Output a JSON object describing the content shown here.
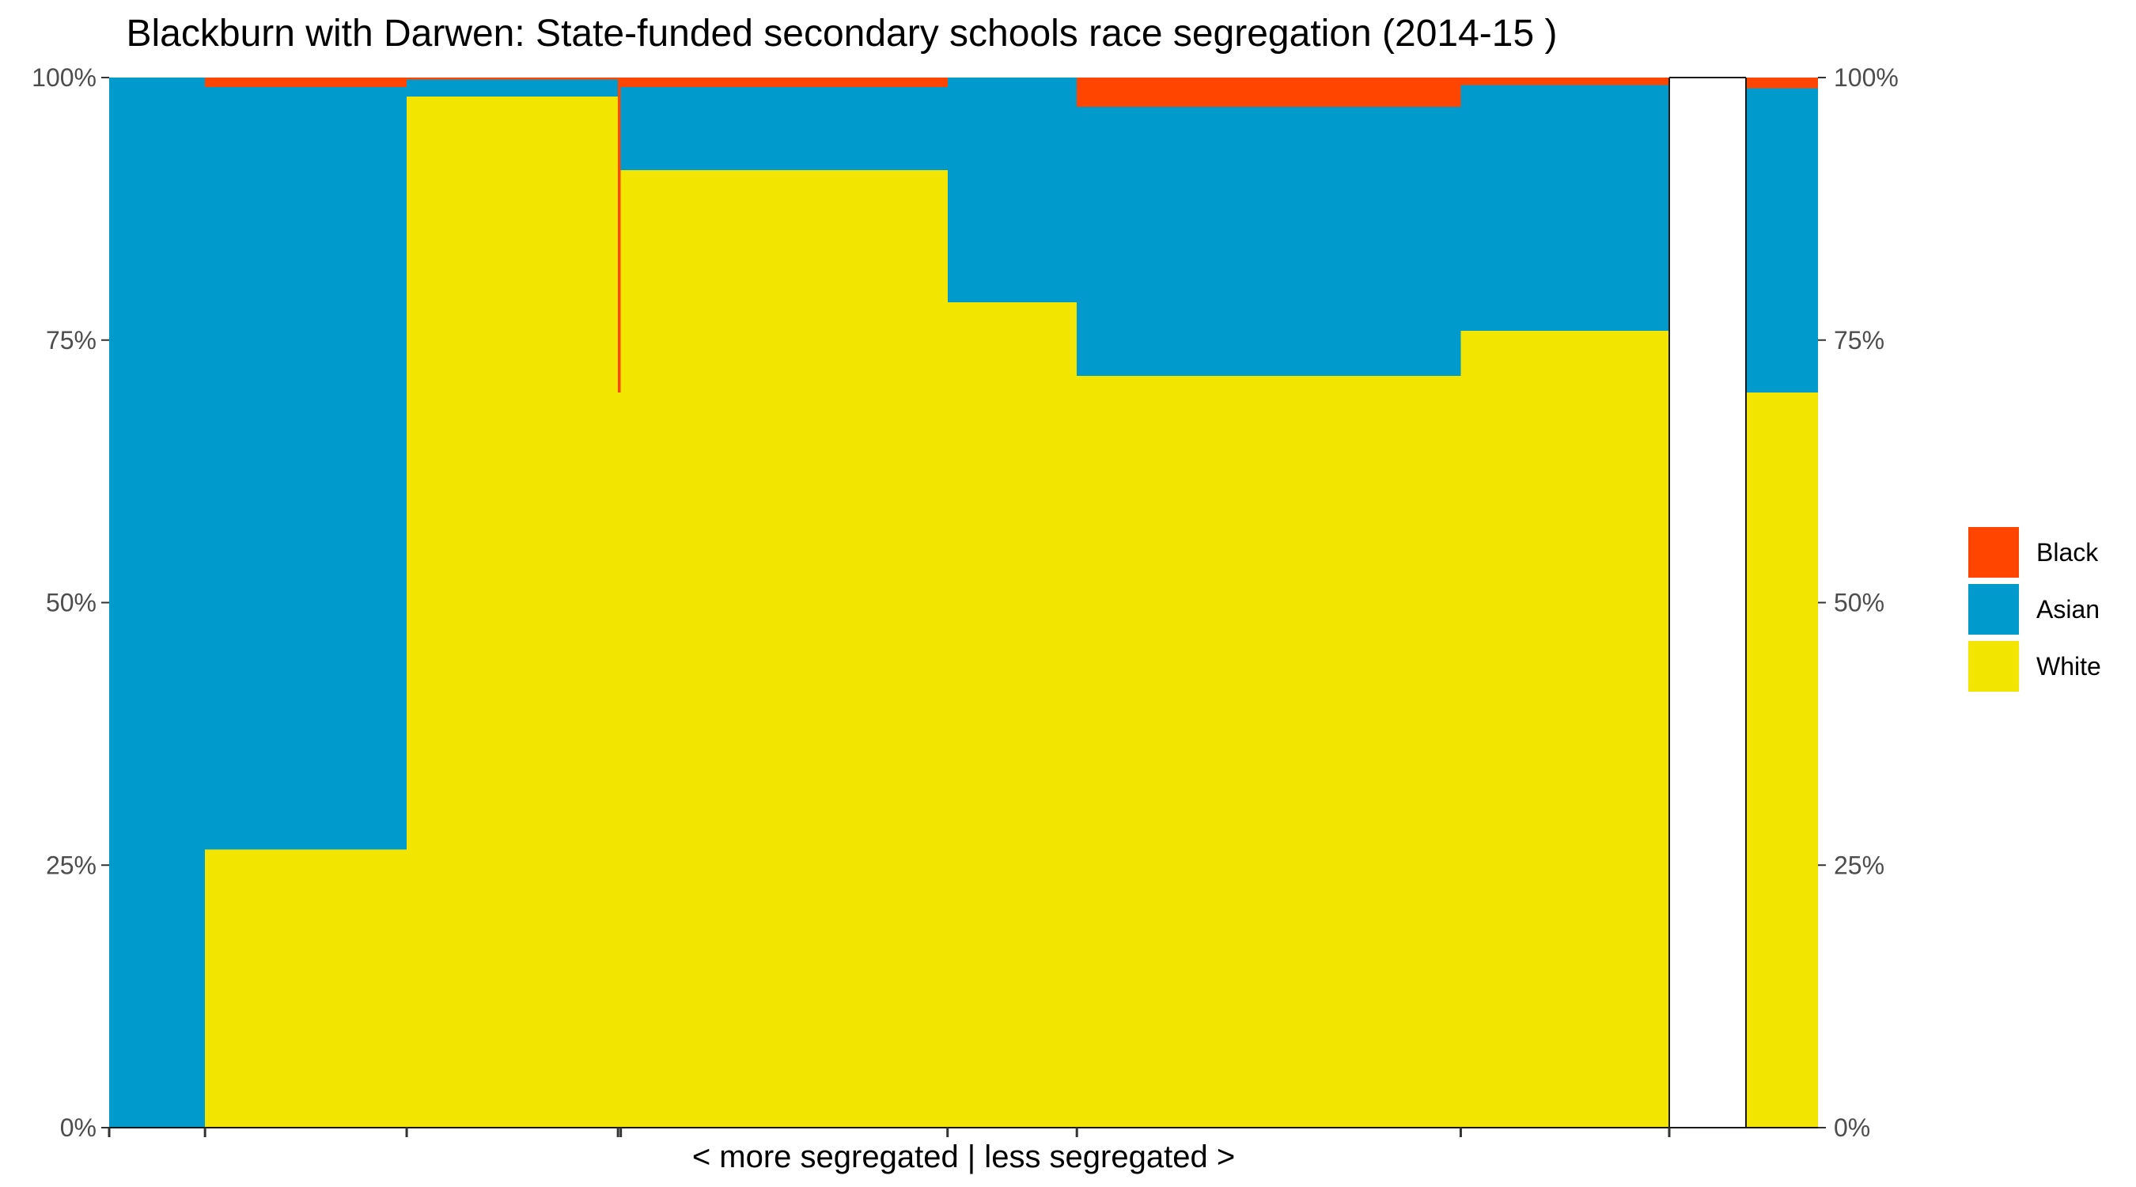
{
  "chart_data": {
    "type": "bar",
    "title": "Blackburn with Darwen: State-funded secondary schools race segregation (2014-15 )",
    "xlabel": "< more segregated | less segregated >",
    "ylabel": "",
    "ylim": [
      0,
      1
    ],
    "y_ticks": [
      "0%",
      "25%",
      "50%",
      "75%",
      "100%"
    ],
    "legend_position": "right",
    "grid": false,
    "secondary_y_axis": true,
    "series": [
      {
        "name": "Black",
        "color": "#FF4500"
      },
      {
        "name": "Asian",
        "color": "#009ACD"
      },
      {
        "name": "White",
        "color": "#F2E500"
      }
    ],
    "schools": [
      {
        "share": 0.0547,
        "Black": 0.0,
        "Asian": 1.0,
        "White": 0.0
      },
      {
        "share": 0.1151,
        "Black": 0.009,
        "Asian": 0.726,
        "White": 0.265
      },
      {
        "share": 0.1206,
        "Black": 0.002,
        "Asian": 0.016,
        "White": 0.982
      },
      {
        "share": 0.0016,
        "Black": 0.3,
        "Asian": 0.0,
        "White": 0.7
      },
      {
        "share": 0.1865,
        "Black": 0.009,
        "Asian": 0.079,
        "White": 0.912
      },
      {
        "share": 0.0738,
        "Black": 0.0,
        "Asian": 0.214,
        "White": 0.786
      },
      {
        "share": 0.2191,
        "Black": 0.028,
        "Asian": 0.256,
        "White": 0.716
      },
      {
        "share": 0.119,
        "Black": 0.007,
        "Asian": 0.234,
        "White": 0.759
      }
    ],
    "average": {
      "Black": 0.01,
      "Asian": 0.29,
      "White": 0.7
    }
  }
}
